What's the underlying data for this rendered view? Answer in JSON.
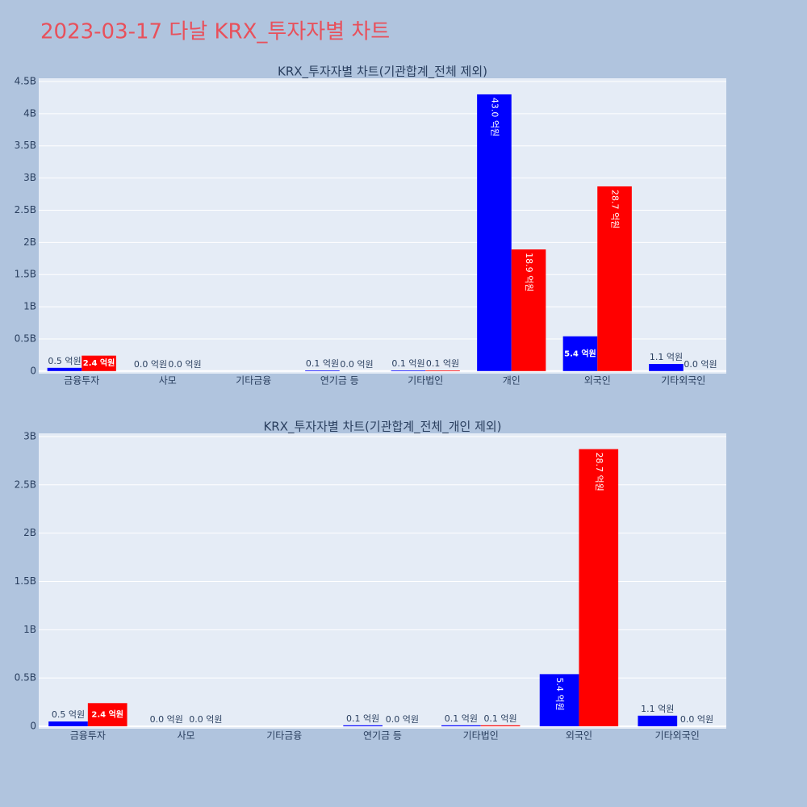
{
  "title": "2023-03-17 다날 KRX_투자자별 차트",
  "chart_data": [
    {
      "type": "bar",
      "title": "KRX_투자자별 차트(기관합계_전체 제외)",
      "categories": [
        "금융투자",
        "사모",
        "기타금융",
        "연기금 등",
        "기타법인",
        "개인",
        "외국인",
        "기타외국인"
      ],
      "series": [
        {
          "color": "#0000ff",
          "values": [
            50000000,
            0,
            null,
            10000000,
            10000000,
            4300000000,
            540000000,
            110000000
          ],
          "value_labels": [
            "0.5 억원",
            "0.0 억원",
            null,
            "0.1 억원",
            "0.1 억원",
            "43.0 억원",
            "5.4 억원",
            "1.1 억원"
          ]
        },
        {
          "color": "#ff0000",
          "values": [
            240000000,
            0,
            null,
            0,
            10000000,
            1890000000,
            2870000000,
            0
          ],
          "value_labels": [
            "2.4 억원",
            "0.0 억원",
            null,
            "0.0 억원",
            "0.1 억원",
            "18.9 억원",
            "28.7 억원",
            "0.0 억원"
          ]
        }
      ],
      "ylim": [
        -40000000,
        4550000000
      ],
      "yticks": [
        0,
        {
          "value": 500000000,
          "label": "0.5B"
        },
        {
          "value": 1000000000,
          "label": "1B"
        },
        {
          "value": 1500000000,
          "label": "1.5B"
        },
        {
          "value": 2000000000,
          "label": "2B"
        },
        {
          "value": 2500000000,
          "label": "2.5B"
        },
        {
          "value": 3000000000,
          "label": "3B"
        },
        {
          "value": 3500000000,
          "label": "3.5B"
        },
        {
          "value": 4000000000,
          "label": "4B"
        },
        {
          "value": 4500000000,
          "label": "4.5B"
        }
      ],
      "grid": true
    },
    {
      "type": "bar",
      "title": "KRX_투자자별 차트(기관합계_전체_개인 제외)",
      "categories": [
        "금융투자",
        "사모",
        "기타금융",
        "연기금 등",
        "기타법인",
        "외국인",
        "기타외국인"
      ],
      "series": [
        {
          "color": "#0000ff",
          "values": [
            50000000,
            0,
            null,
            10000000,
            10000000,
            540000000,
            110000000
          ],
          "value_labels": [
            "0.5 억원",
            "0.0 억원",
            null,
            "0.1 억원",
            "0.1 억원",
            "5.4 억원",
            "1.1 억원"
          ]
        },
        {
          "color": "#ff0000",
          "values": [
            240000000,
            0,
            null,
            0,
            10000000,
            2870000000,
            0
          ],
          "value_labels": [
            "2.4 억원",
            "0.0 억원",
            null,
            "0.0 억원",
            "0.1 억원",
            "28.7 억원",
            "0.0 억원"
          ]
        }
      ],
      "ylim": [
        -25000000,
        3033000000
      ],
      "yticks": [
        0,
        {
          "value": 500000000,
          "label": "0.5B"
        },
        {
          "value": 1000000000,
          "label": "1B"
        },
        {
          "value": 1500000000,
          "label": "1.5B"
        },
        {
          "value": 2000000000,
          "label": "2B"
        },
        {
          "value": 2500000000,
          "label": "2.5B"
        },
        {
          "value": 3000000000,
          "label": "3B"
        }
      ],
      "grid": true
    }
  ]
}
